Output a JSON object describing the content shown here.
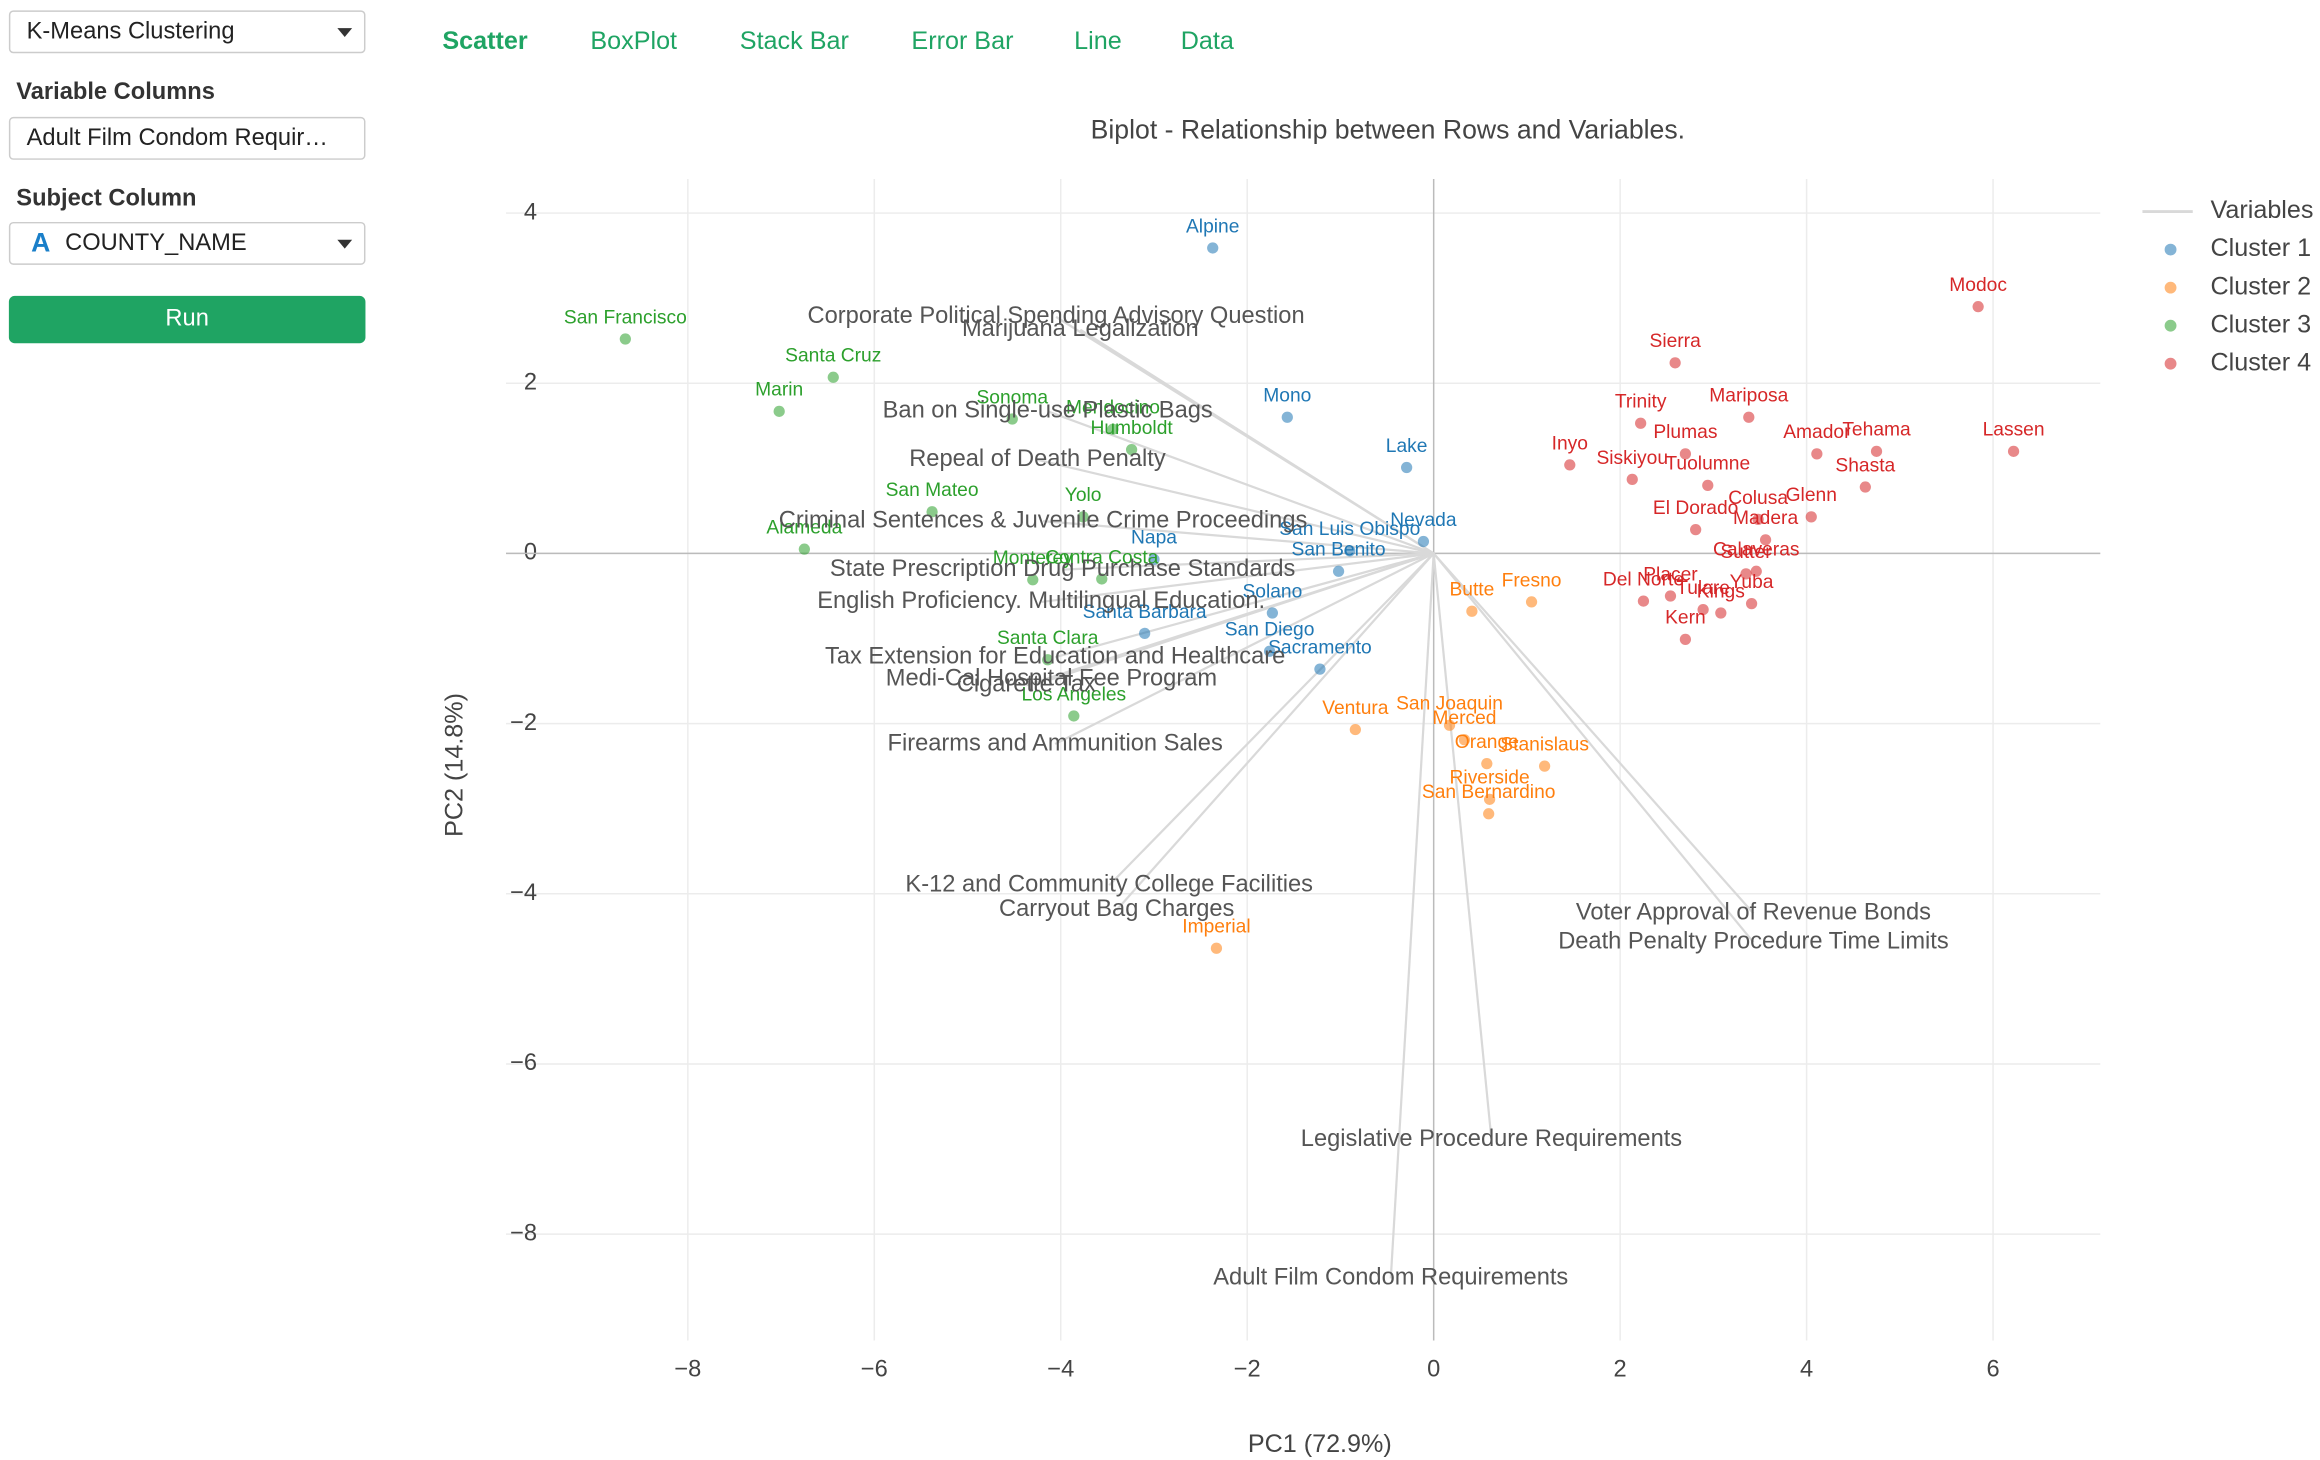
{
  "sidebar": {
    "method": "K-Means Clustering",
    "variable_columns_label": "Variable Columns",
    "variable_columns_value": "Adult Film Condom Requir…",
    "subject_column_label": "Subject Column",
    "subject_type_icon": "A",
    "subject_column_value": "COUNTY_NAME",
    "run_button": "Run"
  },
  "tabs": [
    "Scatter",
    "BoxPlot",
    "Stack Bar",
    "Error Bar",
    "Line",
    "Data"
  ],
  "active_tab": 0,
  "chart_data": {
    "type": "scatter",
    "title": "Biplot - Relationship between Rows and Variables.",
    "x_label": "PC1 (72.9%)",
    "y_label": "PC2 (14.8%)",
    "xlim": [
      -9.95,
      7.15
    ],
    "ylim": [
      -9.25,
      4.4
    ],
    "xticks": [
      {
        "value": -8,
        "label": "−8"
      },
      {
        "value": -6,
        "label": "−6"
      },
      {
        "value": -4,
        "label": "−4"
      },
      {
        "value": -2,
        "label": "−2"
      },
      0,
      2,
      4,
      6
    ],
    "yticks": [
      4,
      2,
      0,
      {
        "value": -2,
        "label": "−2"
      },
      {
        "value": -4,
        "label": "−4"
      },
      {
        "value": -6,
        "label": "−6"
      },
      {
        "value": -8,
        "label": "−8"
      }
    ],
    "grid": true,
    "legend_position": "right",
    "variables": {
      "name": "Variables",
      "color": "#d9d9d9",
      "labels": [
        "Corporate Political Spending Advisory Question",
        "Marijuana Legalization",
        "Ban on Single-use Plastic Bags",
        "Repeal of Death Penalty",
        "Criminal Sentences & Juvenile Crime Proceedings",
        "State Prescription Drug Purchase Standards",
        "English Proficiency. Multilingual Education.",
        "Tax Extension for Education and Healthcare",
        "Medi-Cal Hospital Fee Program",
        "Cigarette Tax",
        "Firearms and Ammunition Sales",
        "K-12 and Community College Facilities",
        "Carryout Bag Charges",
        "Voter Approval of Revenue Bonds",
        "Death Penalty Procedure Time Limits",
        "Legislative Procedure Requirements",
        "Adult Film Condom Requirements"
      ],
      "x": [
        -4.05,
        -3.79,
        -4.14,
        -4.25,
        -4.19,
        -3.98,
        -4.21,
        -4.06,
        -4.1,
        -4.37,
        -4.06,
        -3.48,
        -3.4,
        3.43,
        3.43,
        0.62,
        -0.46
      ],
      "values": [
        2.78,
        2.63,
        1.67,
        1.1,
        0.38,
        -0.19,
        -0.57,
        -1.22,
        -1.48,
        -1.55,
        -2.24,
        -3.9,
        -4.19,
        -4.23,
        -4.57,
        -6.89,
        -8.52
      ]
    },
    "series": [
      {
        "name": "Cluster 1",
        "color": "#1f77b4",
        "labels": [
          "Alpine",
          "Mono",
          "Lake",
          "Nevada",
          "San Luis Obispo",
          "San Benito",
          "Napa",
          "Solano",
          "Santa Barbara",
          "San Diego",
          "Sacramento"
        ],
        "x": [
          -2.37,
          -1.57,
          -0.29,
          -0.11,
          -0.9,
          -1.02,
          -3.0,
          -1.73,
          -3.1,
          -1.76,
          -1.22
        ],
        "values": [
          3.59,
          1.6,
          1.01,
          0.14,
          0.03,
          -0.21,
          -0.07,
          -0.7,
          -0.94,
          -1.15,
          -1.36
        ]
      },
      {
        "name": "Cluster 2",
        "color": "#ff7f0e",
        "labels": [
          "Fresno",
          "Butte",
          "Ventura",
          "San Joaquin",
          "Merced",
          "Orange",
          "Stanislaus",
          "Riverside",
          "San Bernardino",
          "Imperial"
        ],
        "x": [
          1.05,
          0.41,
          -0.84,
          0.17,
          0.33,
          0.57,
          1.19,
          0.6,
          0.59,
          -2.33
        ],
        "values": [
          -0.57,
          -0.68,
          -2.07,
          -2.02,
          -2.19,
          -2.47,
          -2.5,
          -2.89,
          -3.06,
          -4.64
        ]
      },
      {
        "name": "Cluster 3",
        "color": "#2ca02c",
        "labels": [
          "San Francisco",
          "Santa Cruz",
          "Marin",
          "Sonoma",
          "Mendocino",
          "Humboldt",
          "San Mateo",
          "Yolo",
          "Alameda",
          "Monterey",
          "Contra Costa",
          "Santa Clara",
          "Los Angeles"
        ],
        "x": [
          -8.67,
          -6.44,
          -7.02,
          -4.52,
          -3.44,
          -3.24,
          -5.38,
          -3.76,
          -6.75,
          -4.3,
          -3.56,
          -4.14,
          -3.86
        ],
        "values": [
          2.52,
          2.07,
          1.67,
          1.58,
          1.46,
          1.22,
          0.49,
          0.43,
          0.05,
          -0.31,
          -0.3,
          -1.25,
          -1.91
        ]
      },
      {
        "name": "Cluster 4",
        "color": "#d62728",
        "labels": [
          "Modoc",
          "Sierra",
          "Trinity",
          "Mariposa",
          "Plumas",
          "Amador",
          "Tehama",
          "Lassen",
          "Inyo",
          "Siskiyou",
          "Tuolumne",
          "Shasta",
          "Glenn",
          "Colusa",
          "El Dorado",
          "Madera",
          "Calaveras",
          "Sutter",
          "Placer",
          "Del Norte",
          "Tulare",
          "Yuba",
          "Kings",
          "Kern"
        ],
        "x": [
          5.84,
          2.59,
          2.22,
          3.38,
          2.7,
          4.11,
          4.75,
          6.22,
          1.46,
          2.13,
          2.94,
          4.63,
          4.05,
          3.48,
          2.81,
          3.56,
          3.46,
          3.35,
          2.54,
          2.25,
          2.89,
          3.41,
          3.08,
          2.7
        ],
        "values": [
          2.9,
          2.24,
          1.53,
          1.6,
          1.17,
          1.17,
          1.2,
          1.2,
          1.04,
          0.87,
          0.8,
          0.78,
          0.43,
          0.4,
          0.28,
          0.16,
          -0.21,
          -0.24,
          -0.5,
          -0.56,
          -0.66,
          -0.59,
          -0.7,
          -1.01
        ]
      }
    ]
  }
}
